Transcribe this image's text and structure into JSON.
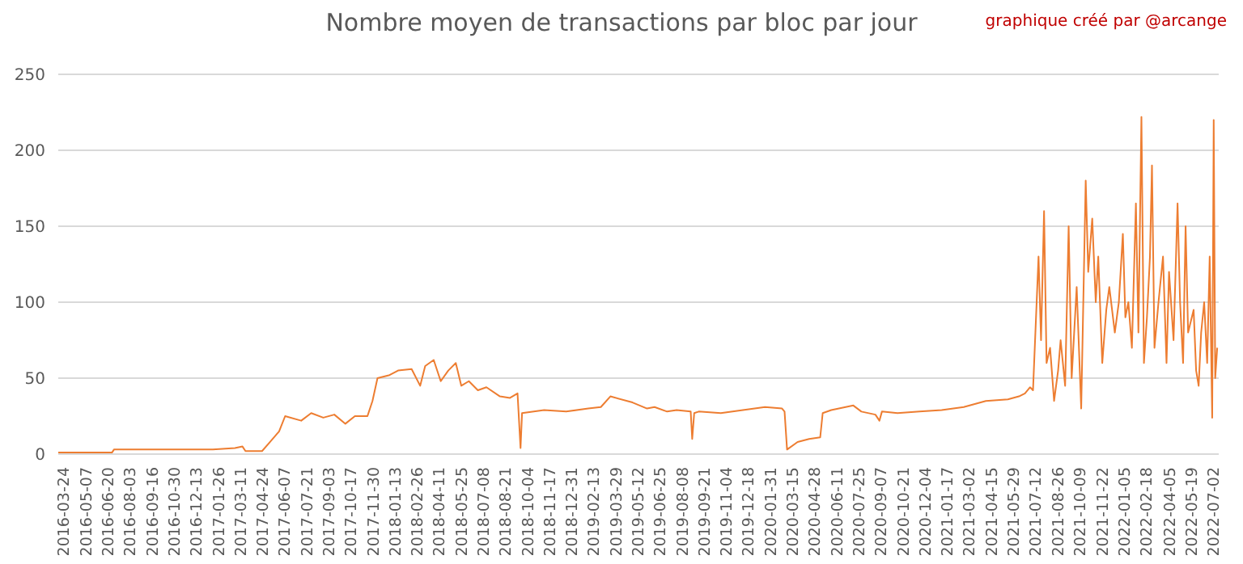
{
  "chart_data": {
    "type": "line",
    "title": "Nombre moyen de transactions par bloc par jour",
    "annotations": [
      "graphique créé par @arcange"
    ],
    "x": [
      "2016-03-24",
      "2016-05-07",
      "2016-07-09",
      "2016-07-13",
      "2016-08-03",
      "2016-09-16",
      "2016-10-30",
      "2016-12-13",
      "2017-01-26",
      "2017-03-11",
      "2017-03-26",
      "2017-04-01",
      "2017-05-04",
      "2017-05-20",
      "2017-06-07",
      "2017-06-19",
      "2017-07-21",
      "2017-08-10",
      "2017-09-03",
      "2017-09-25",
      "2017-10-17",
      "2017-11-05",
      "2017-11-30",
      "2017-12-10",
      "2017-12-20",
      "2018-01-13",
      "2018-01-30",
      "2018-02-26",
      "2018-03-15",
      "2018-03-25",
      "2018-04-11",
      "2018-04-25",
      "2018-05-10",
      "2018-05-25",
      "2018-06-05",
      "2018-06-20",
      "2018-07-08",
      "2018-07-25",
      "2018-08-21",
      "2018-09-10",
      "2018-09-25",
      "2018-10-01",
      "2018-10-04",
      "2018-11-17",
      "2018-12-31",
      "2019-02-13",
      "2019-03-10",
      "2019-03-29",
      "2019-05-12",
      "2019-06-10",
      "2019-06-25",
      "2019-07-20",
      "2019-08-08",
      "2019-09-05",
      "2019-09-08",
      "2019-09-12",
      "2019-09-21",
      "2019-11-04",
      "2019-12-18",
      "2020-01-31",
      "2020-03-05",
      "2020-03-10",
      "2020-03-15",
      "2020-04-05",
      "2020-04-28",
      "2020-05-20",
      "2020-05-25",
      "2020-06-11",
      "2020-07-25",
      "2020-08-10",
      "2020-09-07",
      "2020-09-15",
      "2020-09-20",
      "2020-10-21",
      "2020-12-04",
      "2021-01-17",
      "2021-03-02",
      "2021-04-15",
      "2021-05-29",
      "2021-06-20",
      "2021-07-02",
      "2021-07-12",
      "2021-07-18",
      "2021-07-29",
      "2021-08-03",
      "2021-08-09",
      "2021-08-14",
      "2021-08-21",
      "2021-08-29",
      "2021-09-06",
      "2021-09-11",
      "2021-09-20",
      "2021-09-27",
      "2021-10-03",
      "2021-10-13",
      "2021-10-22",
      "2021-10-31",
      "2021-11-05",
      "2021-11-13",
      "2021-11-20",
      "2021-11-25",
      "2021-12-03",
      "2021-12-11",
      "2021-12-17",
      "2021-12-28",
      "2022-01-05",
      "2022-01-13",
      "2022-01-18",
      "2022-01-24",
      "2022-01-31",
      "2022-02-08",
      "2022-02-13",
      "2022-02-19",
      "2022-02-24",
      "2022-03-02",
      "2022-03-08",
      "2022-03-12",
      "2022-03-17",
      "2022-03-25",
      "2022-04-03",
      "2022-04-10",
      "2022-04-15",
      "2022-04-24",
      "2022-05-02",
      "2022-05-07",
      "2022-05-13",
      "2022-05-18",
      "2022-05-23",
      "2022-06-03",
      "2022-06-08",
      "2022-06-13",
      "2022-06-18",
      "2022-06-24",
      "2022-06-30",
      "2022-07-05",
      "2022-07-10",
      "2022-07-13",
      "2022-07-16",
      "2022-07-20"
    ],
    "series": [
      {
        "color": "#ed7d31",
        "values": [
          1,
          1,
          1,
          3,
          3,
          3,
          3,
          3,
          3,
          4,
          5,
          2,
          2,
          8,
          15,
          25,
          22,
          27,
          24,
          26,
          20,
          25,
          25,
          35,
          50,
          52,
          55,
          56,
          45,
          58,
          62,
          48,
          55,
          60,
          45,
          48,
          42,
          44,
          38,
          37,
          40,
          4,
          27,
          29,
          28,
          30,
          31,
          38,
          34,
          30,
          31,
          28,
          29,
          28,
          10,
          27,
          28,
          27,
          29,
          31,
          30,
          28,
          3,
          8,
          10,
          11,
          27,
          29,
          32,
          28,
          26,
          22,
          28,
          27,
          28,
          29,
          31,
          35,
          36,
          38,
          40,
          44,
          42,
          130,
          75,
          160,
          60,
          70,
          35,
          55,
          75,
          45,
          150,
          50,
          110,
          30,
          180,
          120,
          155,
          100,
          130,
          60,
          95,
          110,
          80,
          100,
          145,
          90,
          100,
          70,
          165,
          80,
          222,
          60,
          90,
          130,
          190,
          70,
          100,
          130,
          60,
          120,
          75,
          165,
          100,
          60,
          150,
          80,
          95,
          55,
          45,
          80,
          100,
          60,
          130,
          24,
          220,
          50,
          70
        ]
      }
    ],
    "xlim": [
      "2016-03-24",
      "2022-07-23"
    ],
    "xticks": [
      "2016-03-24",
      "2016-05-07",
      "2016-06-20",
      "2016-08-03",
      "2016-09-16",
      "2016-10-30",
      "2016-12-13",
      "2017-01-26",
      "2017-03-11",
      "2017-04-24",
      "2017-06-07",
      "2017-07-21",
      "2017-09-03",
      "2017-10-17",
      "2017-11-30",
      "2018-01-13",
      "2018-02-26",
      "2018-04-11",
      "2018-05-25",
      "2018-07-08",
      "2018-08-21",
      "2018-10-04",
      "2018-11-17",
      "2018-12-31",
      "2019-02-13",
      "2019-03-29",
      "2019-05-12",
      "2019-06-25",
      "2019-08-08",
      "2019-09-21",
      "2019-11-04",
      "2019-12-18",
      "2020-01-31",
      "2020-03-15",
      "2020-04-28",
      "2020-06-11",
      "2020-07-25",
      "2020-09-07",
      "2020-10-21",
      "2020-12-04",
      "2021-01-17",
      "2021-03-02",
      "2021-04-15",
      "2021-05-29",
      "2021-07-12",
      "2021-08-26",
      "2021-10-09",
      "2021-11-22",
      "2022-01-05",
      "2022-02-18",
      "2022-04-05",
      "2022-05-19",
      "2022-07-02"
    ],
    "ylim": [
      0,
      250
    ],
    "yticks": [
      0,
      50,
      100,
      150,
      200,
      250
    ],
    "grid": "y",
    "legend": false,
    "marker": "none",
    "line_style": "solid"
  }
}
